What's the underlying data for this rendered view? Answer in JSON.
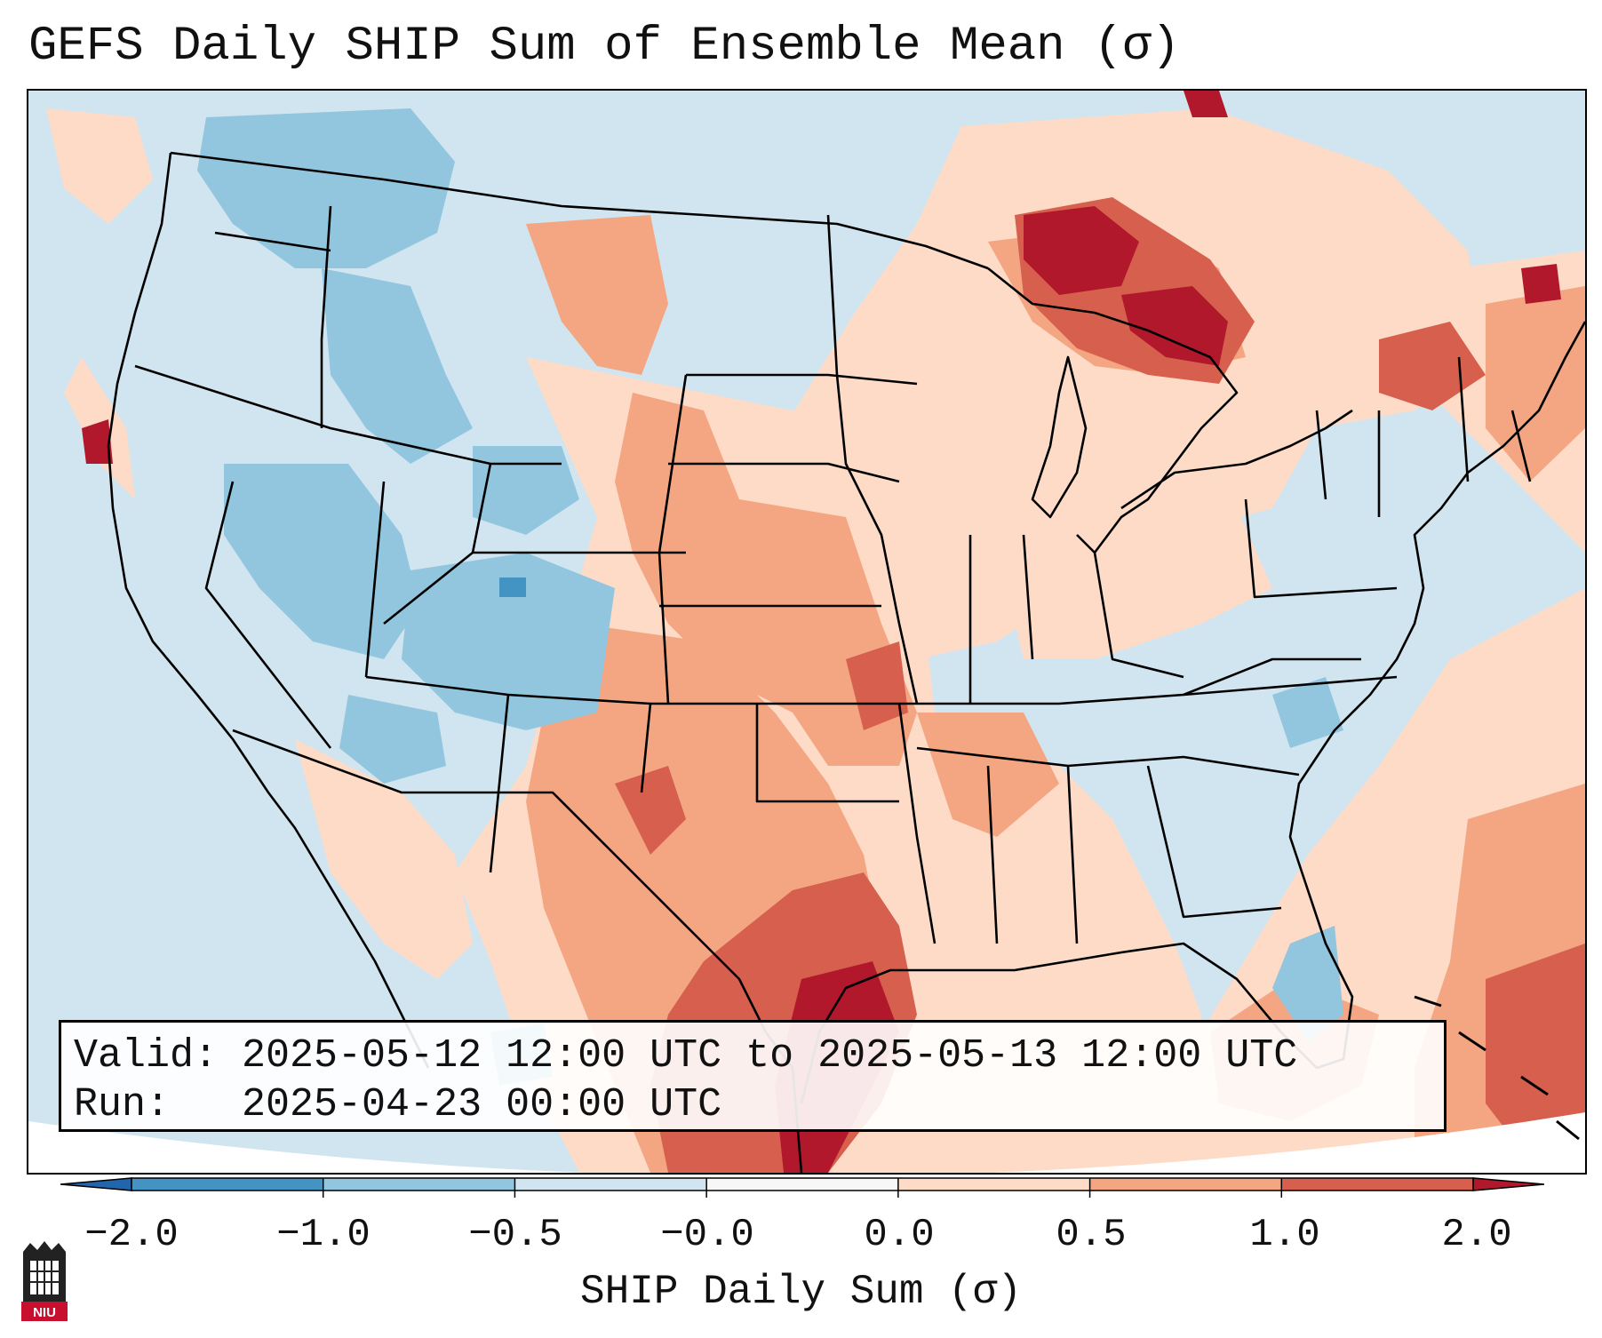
{
  "title": "GEFS Daily SHIP Sum of Ensemble Mean (σ)",
  "info": {
    "valid_line": "Valid: 2025-05-12 12:00 UTC to 2025-05-13 12:00 UTC",
    "run_line": "Run:   2025-04-23 00:00 UTC"
  },
  "colorbar": {
    "label": "SHIP Daily Sum (σ)",
    "ticks": [
      "−2.0",
      "−1.0",
      "−0.5",
      "−0.0",
      "0.0",
      "0.5",
      "1.0",
      "2.0"
    ],
    "colors": [
      "#2166ac",
      "#4393c3",
      "#92c5de",
      "#d1e5f0",
      "#f7f7f7",
      "#fddbc7",
      "#f4a582",
      "#d6604d",
      "#b2182b"
    ]
  },
  "logo": {
    "text": "NIU",
    "name": "Northern Illinois University"
  },
  "map": {
    "region": "Continental United States",
    "background_color": "#d1e5f0"
  }
}
